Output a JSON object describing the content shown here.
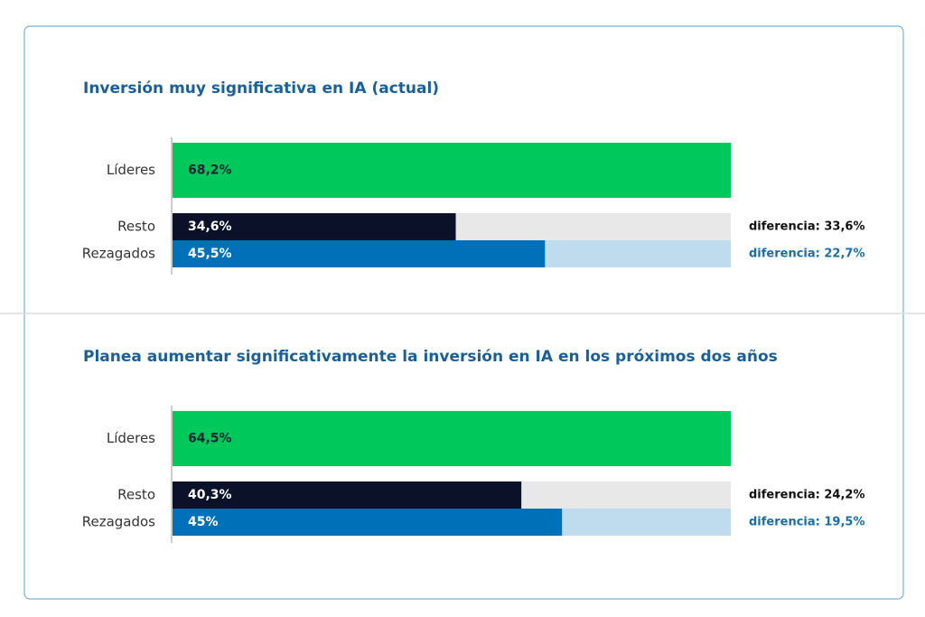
{
  "chart_data": [
    {
      "type": "bar",
      "title": "Inversión muy significativa en IA (actual)",
      "categories": [
        "Líderes",
        "Resto",
        "Rezagados"
      ],
      "values": [
        68.2,
        34.6,
        45.5
      ],
      "value_labels": [
        "68,2%",
        "34,6%",
        "45,5%"
      ],
      "colors": [
        "#00c85a",
        "#0a1128",
        "#0070b8"
      ],
      "annotations": [
        "diferencia: 33,6%",
        "diferencia: 22,7%"
      ]
    },
    {
      "type": "bar",
      "title": "Planea aumentar significativamente la inversión en IA en los próximos dos años",
      "categories": [
        "Líderes",
        "Resto",
        "Rezagados"
      ],
      "values": [
        64.5,
        40.3,
        45
      ],
      "value_labels": [
        "64,5%",
        "40,3%",
        "45%"
      ],
      "colors": [
        "#00c85a",
        "#0a1128",
        "#0070b8"
      ],
      "annotations": [
        "diferencia: 24,2%",
        "diferencia: 19,5%"
      ]
    }
  ]
}
